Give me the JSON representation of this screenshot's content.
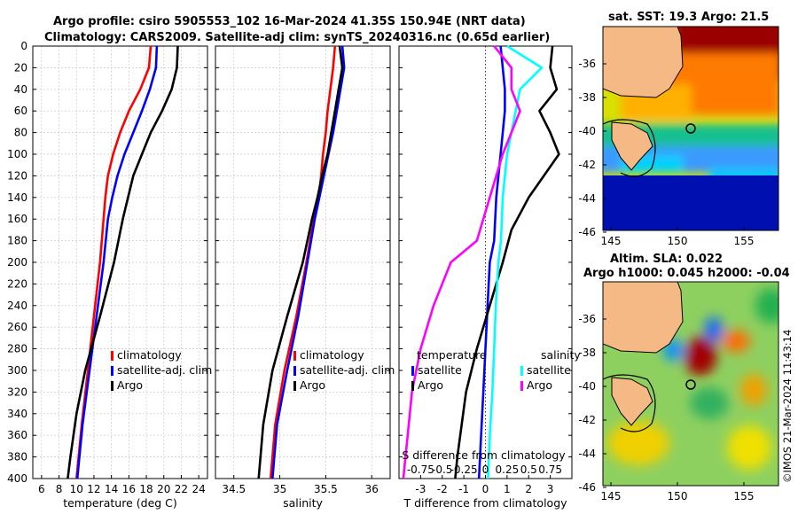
{
  "header": {
    "line1": "Argo profile: csiro 5905553_102 16-Mar-2024 41.35S 150.94E (NRT data)",
    "line2": "Climatology: CARS2009. Satellite-adj clim: synTS_20240316.nc (0.65d earlier)"
  },
  "colors": {
    "climatology": "#ff0000",
    "satellite": "#0000ff",
    "argo": "#000000",
    "sat_salinity": "#00ffff",
    "argo_salinity": "#ff00ff"
  },
  "depth_ticks": [
    "0",
    "20",
    "40",
    "60",
    "80",
    "100",
    "120",
    "140",
    "160",
    "180",
    "200",
    "220",
    "240",
    "260",
    "280",
    "300",
    "320",
    "340",
    "360",
    "380",
    "400"
  ],
  "chart_data": [
    {
      "type": "line",
      "title": "",
      "xlabel": "temperature (deg C)",
      "ylabel": "depth",
      "xlim": [
        5,
        25
      ],
      "ylim": [
        400,
        0
      ],
      "xticks": [
        "6",
        "8",
        "10",
        "12",
        "14",
        "16",
        "18",
        "20",
        "22",
        "24"
      ],
      "xtick_values": [
        6,
        8,
        10,
        12,
        14,
        16,
        18,
        20,
        22,
        24
      ],
      "grid": true,
      "legend": [
        "climatology",
        "satellite-adj. clim",
        "Argo"
      ],
      "series": [
        {
          "name": "climatology",
          "color": "#ff0000",
          "x": [
            18.5,
            18.3,
            17.3,
            16.0,
            15.0,
            14.2,
            13.6,
            13.3,
            13.1,
            12.7,
            12.0,
            11.3,
            10.6,
            10.0
          ],
          "y": [
            0,
            20,
            40,
            60,
            80,
            100,
            120,
            140,
            160,
            200,
            250,
            300,
            350,
            400
          ]
        },
        {
          "name": "satellite-adj. clim",
          "color": "#0000ff",
          "x": [
            19.2,
            19.1,
            18.4,
            17.5,
            16.5,
            15.5,
            14.7,
            14.1,
            13.6,
            13.1,
            12.3,
            11.5,
            10.7,
            10.1
          ],
          "y": [
            0,
            20,
            40,
            60,
            80,
            100,
            120,
            140,
            160,
            200,
            250,
            300,
            350,
            400
          ]
        },
        {
          "name": "Argo",
          "color": "#000000",
          "x": [
            21.6,
            21.5,
            20.9,
            19.8,
            18.5,
            17.5,
            16.5,
            15.9,
            15.3,
            14.3,
            12.7,
            11.0,
            10.0,
            9.3,
            9.0
          ],
          "y": [
            0,
            20,
            40,
            60,
            80,
            100,
            120,
            140,
            160,
            200,
            250,
            300,
            340,
            380,
            400
          ]
        }
      ]
    },
    {
      "type": "line",
      "xlabel": "salinity",
      "xlim": [
        34.3,
        36.2
      ],
      "ylim": [
        400,
        0
      ],
      "xticks": [
        "34.5",
        "35",
        "35.5",
        "36"
      ],
      "xtick_values": [
        34.5,
        35,
        35.5,
        36
      ],
      "grid": true,
      "legend": [
        "climatology",
        "satellite-adj. clim",
        "Argo"
      ],
      "series": [
        {
          "name": "climatology",
          "color": "#ff0000",
          "x": [
            35.6,
            35.58,
            35.55,
            35.52,
            35.5,
            35.47,
            35.45,
            35.42,
            35.37,
            35.29,
            35.18,
            35.05,
            34.95,
            34.9
          ],
          "y": [
            0,
            20,
            40,
            60,
            80,
            100,
            120,
            140,
            160,
            200,
            250,
            300,
            350,
            400
          ]
        },
        {
          "name": "satellite-adj. clim",
          "color": "#0000ff",
          "x": [
            35.68,
            35.7,
            35.66,
            35.62,
            35.58,
            35.53,
            35.48,
            35.43,
            35.38,
            35.3,
            35.2,
            35.08,
            34.97,
            34.92
          ],
          "y": [
            0,
            20,
            40,
            60,
            80,
            100,
            120,
            140,
            160,
            200,
            250,
            300,
            350,
            400
          ]
        },
        {
          "name": "Argo",
          "color": "#000000",
          "x": [
            35.65,
            35.68,
            35.64,
            35.6,
            35.56,
            35.52,
            35.46,
            35.41,
            35.35,
            35.25,
            35.08,
            34.92,
            34.82,
            34.77
          ],
          "y": [
            0,
            20,
            40,
            60,
            80,
            100,
            120,
            140,
            160,
            200,
            250,
            300,
            350,
            400
          ]
        }
      ]
    },
    {
      "type": "line",
      "xlabel": "T difference from climatology",
      "xlabel_top": "S difference from climatology",
      "xlim": [
        -4,
        4
      ],
      "ylim": [
        400,
        0
      ],
      "xticks": [
        "-3",
        "-2",
        "-1",
        "0",
        "1",
        "2",
        "3"
      ],
      "xtick_values": [
        -3,
        -2,
        -1,
        0,
        1,
        2,
        3
      ],
      "top_ticks": [
        "-0.75",
        "-0.5",
        "-0.25",
        "0",
        "0.25",
        "0.5",
        "0.75"
      ],
      "legend_titles": [
        "temperature",
        "salinity"
      ],
      "legend_left": [
        "satellite",
        "Argo"
      ],
      "legend_right": [
        "satellite",
        "Argo"
      ],
      "series": [
        {
          "name": "T satellite",
          "color": "#0000ff",
          "x": [
            0.7,
            0.8,
            0.9,
            0.9,
            0.8,
            0.7,
            0.5,
            0.4,
            0.2,
            0.1,
            0.0,
            -0.1,
            -0.2,
            -0.3
          ],
          "y": [
            0,
            20,
            40,
            60,
            80,
            100,
            140,
            180,
            200,
            240,
            280,
            320,
            360,
            400
          ]
        },
        {
          "name": "T Argo",
          "color": "#000000",
          "x": [
            3.1,
            3.0,
            3.3,
            2.5,
            3.0,
            3.4,
            2.0,
            1.2,
            0.8,
            0.2,
            -0.4,
            -0.9,
            -1.1,
            -1.3,
            -1.4
          ],
          "y": [
            0,
            20,
            40,
            60,
            80,
            100,
            140,
            170,
            200,
            240,
            280,
            320,
            350,
            380,
            400
          ]
        },
        {
          "name": "S satellite",
          "color": "#00ffff",
          "x": [
            0.25,
            0.65,
            0.4,
            0.35,
            0.3,
            0.25,
            0.2,
            0.18,
            0.15,
            0.12,
            0.1,
            0.08,
            0.05,
            0.03
          ],
          "y": [
            0,
            20,
            40,
            60,
            80,
            100,
            140,
            180,
            200,
            240,
            280,
            320,
            360,
            400
          ]
        },
        {
          "name": "S Argo",
          "color": "#ff00ff",
          "x": [
            0.1,
            0.3,
            0.3,
            0.4,
            0.3,
            0.2,
            0.05,
            -0.1,
            -0.4,
            -0.6,
            -0.75,
            -0.85,
            -0.9,
            -0.95
          ],
          "y": [
            0,
            20,
            40,
            60,
            80,
            100,
            140,
            180,
            200,
            240,
            280,
            320,
            360,
            400
          ]
        }
      ]
    },
    {
      "type": "heatmap",
      "title": "sat. SST: 19.3 Argo: 21.5",
      "xticks": [
        "145",
        "150",
        "155"
      ],
      "yticks": [
        "-36",
        "-38",
        "-40",
        "-42",
        "-44",
        "-46"
      ],
      "marker": {
        "lon": 150.94,
        "lat": -41.35
      }
    },
    {
      "type": "heatmap",
      "title": "Altim. SLA: 0.022",
      "subtitle": "Argo h1000: 0.045 h2000: -0.04",
      "xticks": [
        "145",
        "150",
        "155"
      ],
      "yticks": [
        "-36",
        "-38",
        "-40",
        "-42",
        "-44",
        "-46"
      ],
      "marker": {
        "lon": 150.94,
        "lat": -41.35
      }
    }
  ],
  "footer": {
    "credit": "©IMOS 21-Mar-2024 11:43:14"
  }
}
